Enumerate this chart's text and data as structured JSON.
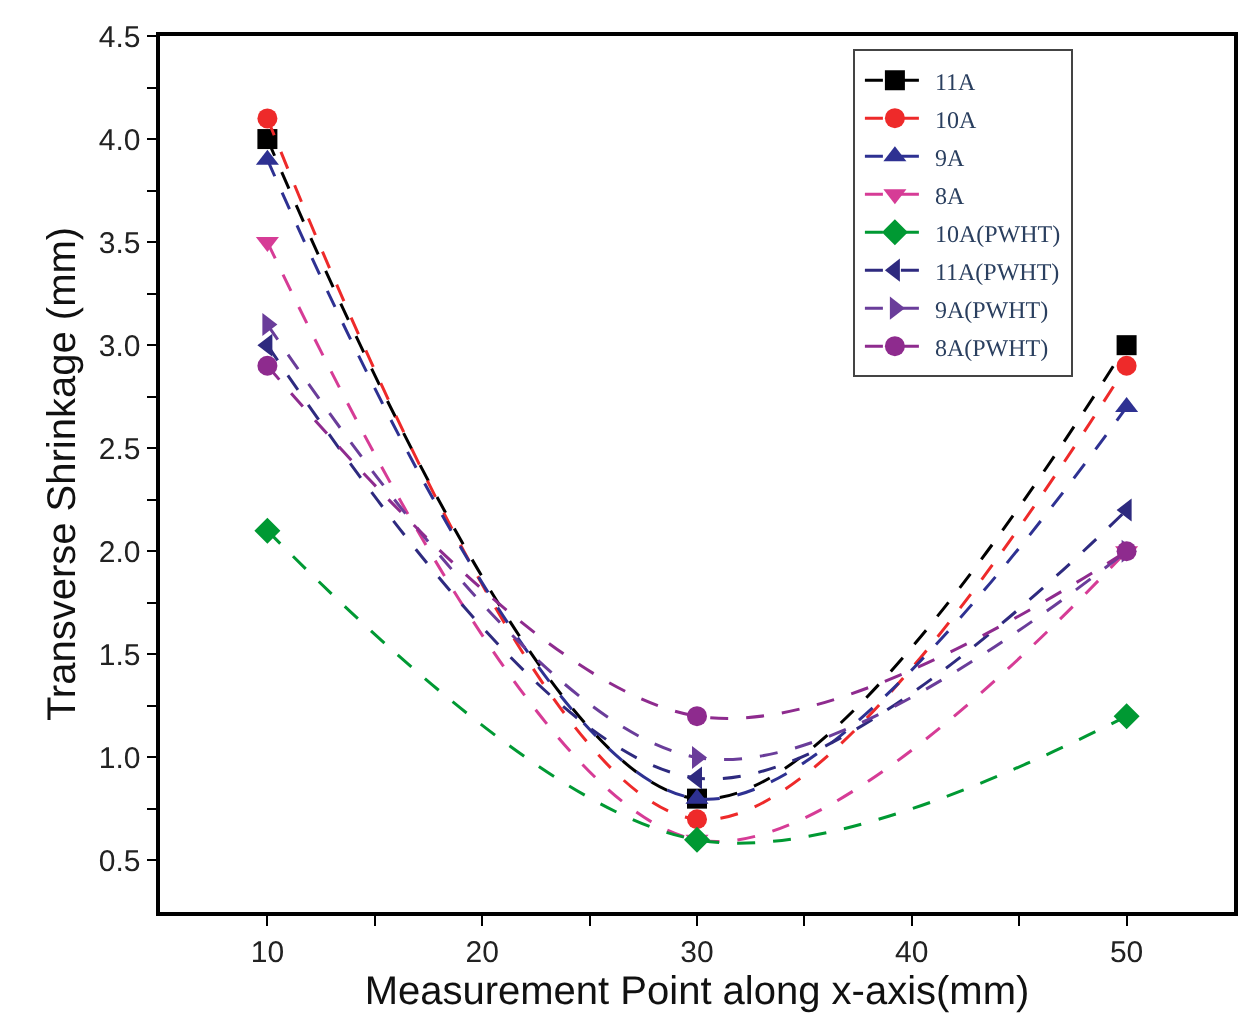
{
  "chart_data": {
    "type": "line",
    "xlabel": "Measurement Point along x-axis(mm)",
    "ylabel": "Transverse Shrinkage (mm)",
    "x": [
      10,
      30,
      50
    ],
    "xlim": [
      5,
      55
    ],
    "xticks": [
      10,
      {
        "value": 15,
        "label": null
      },
      20,
      {
        "value": 25,
        "label": null
      },
      30,
      {
        "value": 35,
        "label": null
      },
      40,
      {
        "value": 45,
        "label": null
      },
      50
    ],
    "ylim": [
      0.25,
      4.5
    ],
    "yticks": [
      0.5,
      {
        "value": 0.75,
        "label": null
      },
      "1.0",
      {
        "value": 1.25,
        "label": null
      },
      1.5,
      {
        "value": 1.75,
        "label": null
      },
      "2.0",
      {
        "value": 2.25,
        "label": null
      },
      2.5,
      {
        "value": 2.75,
        "label": null
      },
      "3.0",
      {
        "value": 3.25,
        "label": null
      },
      3.5,
      {
        "value": 3.75,
        "label": null
      },
      "4.0",
      {
        "value": 4.25,
        "label": null
      },
      4.5
    ],
    "legend": "top right",
    "line_style": "dashed",
    "series": [
      {
        "name": "11A",
        "color": "#000000",
        "marker": "square",
        "values": [
          4.0,
          0.8,
          3.0
        ]
      },
      {
        "name": "10A",
        "color": "#ee2a2a",
        "marker": "circle",
        "values": [
          4.1,
          0.7,
          2.9
        ]
      },
      {
        "name": "9A",
        "color": "#2e3192",
        "marker": "triangle",
        "values": [
          3.9,
          0.8,
          2.7
        ]
      },
      {
        "name": "8A",
        "color": "#d63c96",
        "marker": "triangle-down",
        "values": [
          3.5,
          0.6,
          2.0
        ]
      },
      {
        "name": "10A(PWHT)",
        "color": "#009933",
        "marker": "diamond",
        "values": [
          2.1,
          0.6,
          1.2
        ]
      },
      {
        "name": "11A(PWHT)",
        "color": "#2e2a7f",
        "marker": "triangle-left",
        "values": [
          3.0,
          0.9,
          2.2
        ]
      },
      {
        "name": "9A(PWHT)",
        "color": "#6a3d9a",
        "marker": "triangle-right",
        "values": [
          3.1,
          1.0,
          2.0
        ]
      },
      {
        "name": "8A(PWHT)",
        "color": "#8e2b8e",
        "marker": "circle",
        "values": [
          2.9,
          1.2,
          2.0
        ]
      }
    ]
  }
}
